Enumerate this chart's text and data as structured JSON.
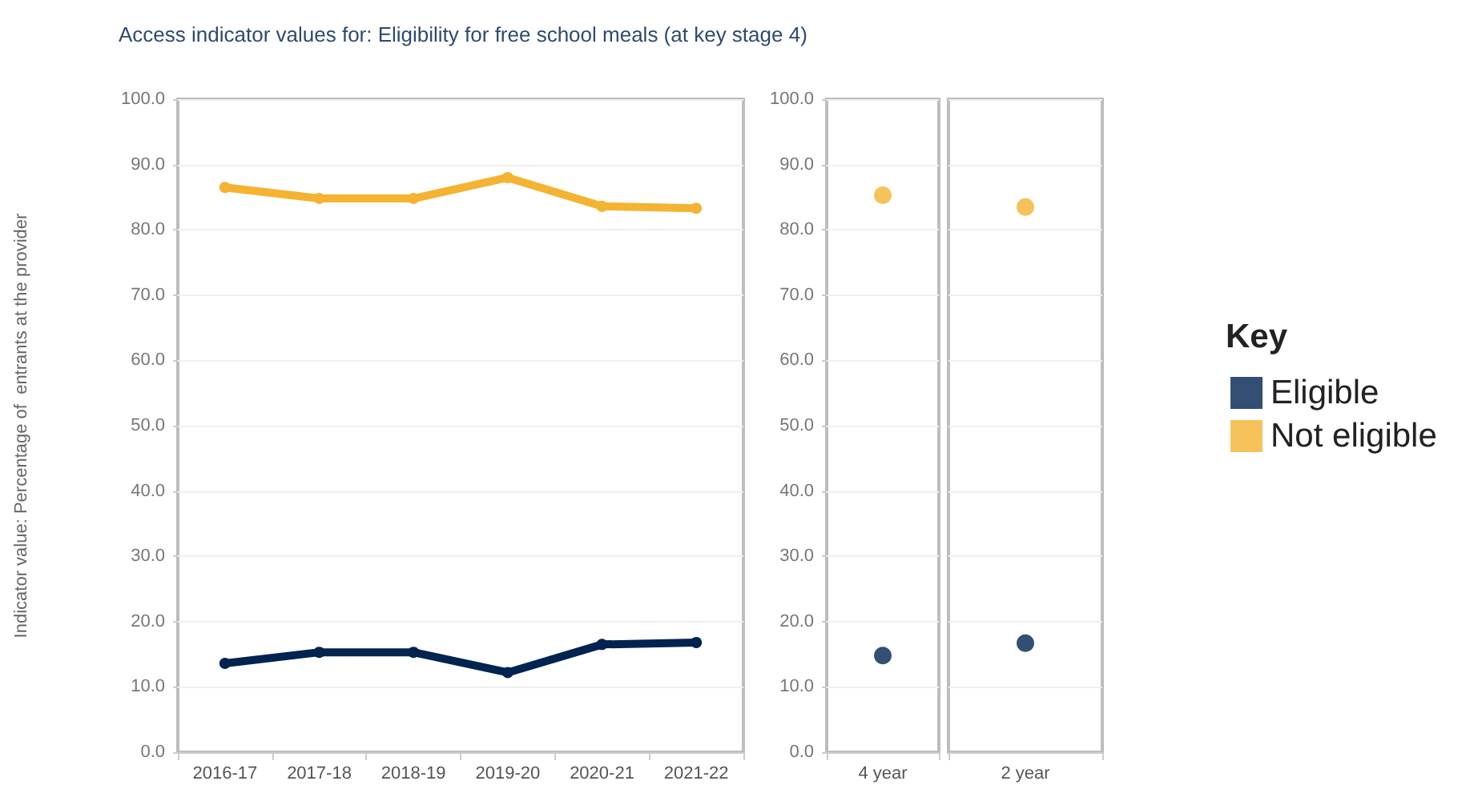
{
  "chart_data": [
    {
      "type": "line",
      "title": "Access indicator values for: Eligibility for free school meals (at key stage 4)",
      "ylabel": "Indicator value: Percentage of  entrants at the provider",
      "categories": [
        "2016-17",
        "2017-18",
        "2018-19",
        "2019-20",
        "2020-21",
        "2021-22"
      ],
      "series": [
        {
          "color": "#002350",
          "values": [
            13.6,
            15.3,
            15.3,
            12.2,
            16.5,
            16.8
          ]
        },
        {
          "color": "#f4b331",
          "values": [
            86.5,
            84.8,
            84.8,
            88.0,
            83.6,
            83.3
          ]
        }
      ],
      "ylim": [
        0,
        100
      ],
      "yticks": [
        {
          "value": 0,
          "label": "0.0"
        },
        {
          "value": 10,
          "label": "10.0"
        },
        {
          "value": 20,
          "label": "20.0"
        },
        {
          "value": 30,
          "label": "30.0"
        },
        {
          "value": 40,
          "label": "40.0"
        },
        {
          "value": 50,
          "label": "50.0"
        },
        {
          "value": 60,
          "label": "60.0"
        },
        {
          "value": 70,
          "label": "70.0"
        },
        {
          "value": 80,
          "label": "80.0"
        },
        {
          "value": 90,
          "label": "90.0"
        },
        {
          "value": 100,
          "label": "100.0"
        }
      ],
      "grid": "y",
      "marker": "circle",
      "line_style": "solid"
    },
    {
      "type": "scatter",
      "categories": [
        "4 year"
      ],
      "series": [
        {
          "color": "#002350",
          "values": [
            14.8
          ]
        },
        {
          "color": "#f4b331",
          "values": [
            85.3
          ]
        }
      ],
      "ylim": [
        0,
        100
      ],
      "yticks": [
        {
          "value": 0,
          "label": "0.0"
        },
        {
          "value": 10,
          "label": "10.0"
        },
        {
          "value": 20,
          "label": "20.0"
        },
        {
          "value": 30,
          "label": "30.0"
        },
        {
          "value": 40,
          "label": "40.0"
        },
        {
          "value": 50,
          "label": "50.0"
        },
        {
          "value": 60,
          "label": "60.0"
        },
        {
          "value": 70,
          "label": "70.0"
        },
        {
          "value": 80,
          "label": "80.0"
        },
        {
          "value": 90,
          "label": "90.0"
        },
        {
          "value": 100,
          "label": "100.0"
        }
      ],
      "grid": "y",
      "marker": "circle"
    },
    {
      "type": "scatter",
      "categories": [
        "2 year"
      ],
      "legend_title": "Key",
      "legend": "right",
      "series": [
        {
          "name": "Eligible",
          "color": "#002350",
          "values": [
            16.7
          ]
        },
        {
          "name": "Not eligible",
          "color": "#f4b331",
          "values": [
            83.5
          ]
        }
      ],
      "ylim": [
        0,
        100
      ],
      "yticks": [
        0,
        10,
        20,
        30,
        40,
        50,
        60,
        70,
        80,
        90,
        100
      ],
      "grid": "y",
      "marker": "circle",
      "tick_labels": "x"
    }
  ]
}
